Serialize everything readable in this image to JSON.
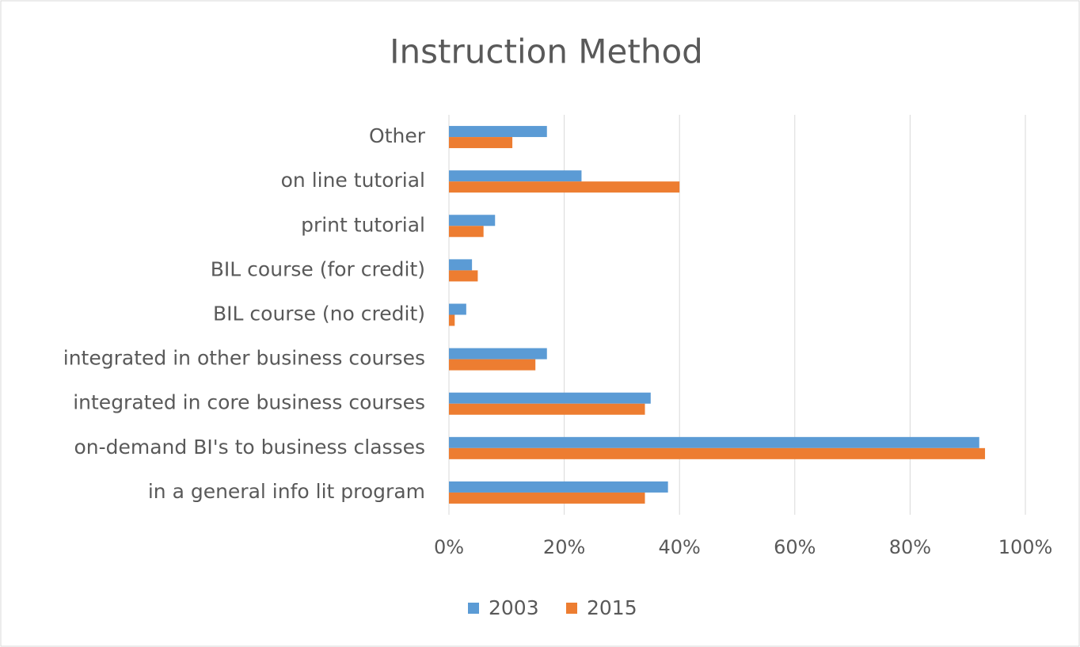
{
  "chart_data": {
    "type": "hbar",
    "title": "Instruction Method",
    "categories": [
      "Other",
      "on line tutorial",
      "print tutorial",
      "BIL course (for credit)",
      "BIL course (no credit)",
      "integrated in other business courses",
      "integrated in core business courses",
      "on-demand BI's to business classes",
      "in a general info lit program"
    ],
    "series": [
      {
        "name": "2003",
        "color": "#5b9bd5",
        "values": [
          17,
          23,
          8,
          4,
          3,
          17,
          35,
          92,
          38
        ]
      },
      {
        "name": "2015",
        "color": "#ed7d31",
        "values": [
          11,
          40,
          6,
          5,
          1,
          15,
          34,
          93,
          34
        ]
      }
    ],
    "xlim": [
      0,
      100
    ],
    "xticks": [
      {
        "value": 0,
        "label": "0%"
      },
      {
        "value": 20,
        "label": "20%"
      },
      {
        "value": 40,
        "label": "40%"
      },
      {
        "value": 60,
        "label": "60%"
      },
      {
        "value": 80,
        "label": "80%"
      },
      {
        "value": 100,
        "label": "100%"
      }
    ],
    "grid": true,
    "legend": "bottom"
  }
}
